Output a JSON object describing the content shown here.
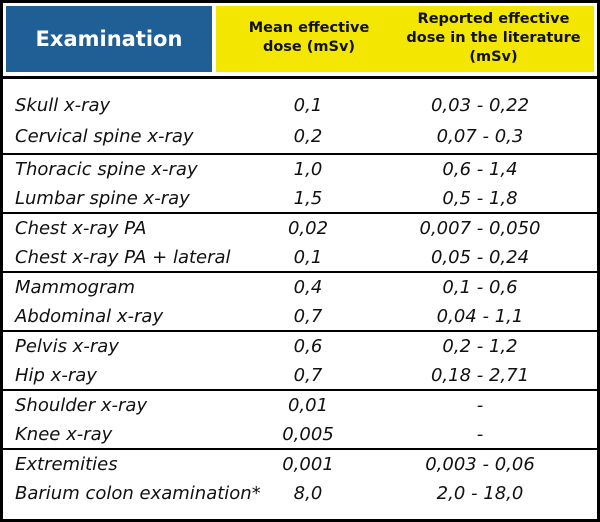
{
  "header": {
    "examination": "Examination",
    "mean_effective_dose": "Mean effective dose (mSv)",
    "reported_effective_dose": "Reported effective dose in the literature (mSv)"
  },
  "colors": {
    "header_blue": "#1f5f95",
    "header_yellow": "#f3e600"
  },
  "groups": [
    {
      "rows": [
        {
          "exam": "Skull x-ray",
          "mean": "0,1",
          "reported": "0,03 - 0,22"
        },
        {
          "exam": "Cervical spine x-ray",
          "mean": "0,2",
          "reported": "0,07 - 0,3"
        }
      ]
    },
    {
      "rows": [
        {
          "exam": "Thoracic spine x-ray",
          "mean": "1,0",
          "reported": "0,6 - 1,4"
        },
        {
          "exam": "Lumbar spine x-ray",
          "mean": "1,5",
          "reported": "0,5 - 1,8"
        }
      ]
    },
    {
      "rows": [
        {
          "exam": "Chest x-ray PA",
          "mean": "0,02",
          "reported": "0,007 - 0,050"
        },
        {
          "exam": "Chest x-ray PA + lateral",
          "mean": "0,1",
          "reported": "0,05 - 0,24"
        }
      ]
    },
    {
      "rows": [
        {
          "exam": "Mammogram",
          "mean": "0,4",
          "reported": "0,1 - 0,6"
        },
        {
          "exam": "Abdominal x-ray",
          "mean": "0,7",
          "reported": "0,04 - 1,1"
        }
      ]
    },
    {
      "rows": [
        {
          "exam": "Pelvis x-ray",
          "mean": "0,6",
          "reported": "0,2 - 1,2"
        },
        {
          "exam": "Hip x-ray",
          "mean": "0,7",
          "reported": "0,18 - 2,71"
        }
      ]
    },
    {
      "rows": [
        {
          "exam": "Shoulder x-ray",
          "mean": "0,01",
          "reported": "-"
        },
        {
          "exam": "Knee x-ray",
          "mean": "0,005",
          "reported": "-"
        }
      ]
    },
    {
      "rows": [
        {
          "exam": "Extremities",
          "mean": "0,001",
          "reported": "0,003 - 0,06"
        },
        {
          "exam": "Barium colon examination*",
          "mean": "8,0",
          "reported": "2,0 - 18,0"
        }
      ]
    }
  ]
}
